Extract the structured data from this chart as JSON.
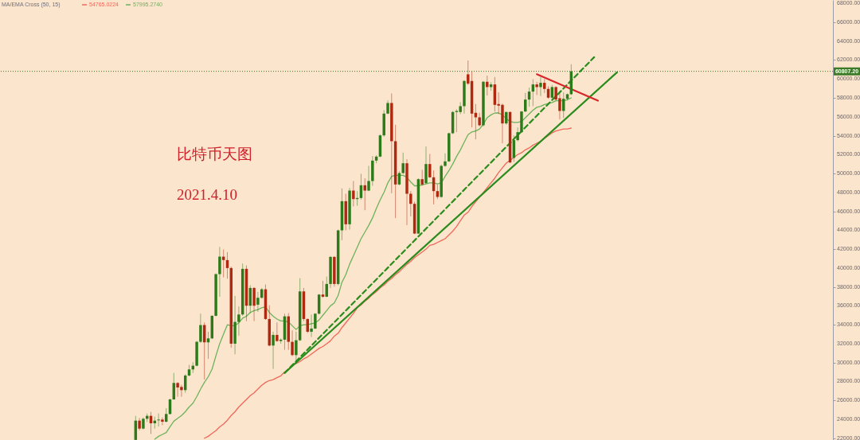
{
  "chart_data": {
    "type": "candlestick",
    "categories": [
      null,
      null,
      null,
      null,
      null,
      null,
      null,
      null,
      null,
      null,
      null,
      null,
      null,
      null,
      null,
      null,
      null,
      null,
      null,
      null,
      null,
      null,
      null,
      null,
      null,
      null,
      null,
      null,
      null,
      null,
      null,
      null,
      null,
      null,
      null,
      null,
      null,
      null,
      null,
      null,
      null,
      null,
      null,
      null,
      null,
      null,
      null,
      null,
      null,
      null,
      null,
      null,
      null,
      null,
      null,
      null,
      null,
      null,
      null,
      null,
      null,
      null,
      null,
      null,
      null,
      null,
      null,
      null,
      null,
      null,
      null,
      null,
      null,
      null,
      null,
      null,
      null,
      null,
      null,
      null,
      null,
      null,
      null,
      null,
      null,
      null,
      null,
      null,
      null,
      null,
      null,
      null,
      null,
      null,
      null,
      null,
      null,
      null,
      null,
      null,
      null,
      null,
      null,
      null,
      null,
      null,
      null,
      null,
      null,
      null,
      null,
      null,
      null,
      null,
      null,
      null,
      null,
      null,
      null,
      null,
      null,
      null,
      null,
      null,
      null,
      null,
      null,
      null,
      null,
      null,
      null,
      null,
      null,
      null,
      null,
      null,
      null,
      null,
      null,
      null,
      null,
      null,
      null,
      null,
      null,
      null,
      null,
      null,
      null,
      null,
      null,
      null,
      null,
      null,
      null,
      null,
      null,
      null,
      null,
      null,
      null,
      null,
      null,
      null,
      null,
      null,
      null,
      null,
      null,
      null,
      null,
      null,
      null,
      null,
      null,
      null,
      null,
      null,
      null,
      null,
      null,
      null,
      null,
      null,
      null,
      null,
      null,
      null,
      null,
      null,
      null,
      null,
      null,
      null,
      null,
      null,
      null,
      null,
      null,
      null,
      null,
      null,
      null,
      null,
      null,
      null,
      null,
      null,
      null,
      null,
      null,
      null,
      null,
      null,
      null,
      null,
      null,
      null
    ],
    "ohlc": [
      null,
      null,
      null,
      null,
      null,
      null,
      null,
      null,
      null,
      null,
      null,
      null,
      null,
      null,
      null,
      null,
      null,
      null,
      null,
      null,
      null,
      null,
      null,
      null,
      null,
      null,
      null,
      null,
      null,
      null,
      null,
      null,
      null,
      null,
      null,
      [
        21820,
        24364,
        21820,
        23858
      ],
      [
        23858,
        24139,
        22819,
        23016
      ],
      [
        23016,
        24195,
        22932,
        24055
      ],
      [
        24055,
        24616,
        23718,
        24364
      ],
      [
        24364,
        24785,
        22454,
        23577
      ],
      [
        23577,
        24279,
        23016,
        23858
      ],
      [
        23887,
        24616,
        23240,
        23970
      ],
      [
        23970,
        24195,
        23381,
        23746
      ],
      [
        23746,
        25177,
        23662,
        24560
      ],
      [
        24560,
        26188,
        24504,
        26104
      ],
      [
        26104,
        28911,
        26076,
        27844
      ],
      [
        27844,
        27928,
        26384,
        27367
      ],
      [
        27423,
        27647,
        26384,
        27086
      ],
      [
        27086,
        28770,
        26805,
        28630
      ],
      [
        28630,
        29753,
        28546,
        29276
      ],
      [
        29276,
        30033,
        28911,
        29668
      ],
      [
        29668,
        32279,
        29612,
        32195
      ],
      [
        32195,
        35170,
        32082,
        33963
      ],
      [
        33963,
        34244,
        28209,
        32139
      ],
      [
        32139,
        33262,
        30398,
        32560
      ],
      [
        32560,
        35002,
        32476,
        34946
      ],
      [
        34946,
        39437,
        34890,
        39353
      ],
      [
        39353,
        42244,
        36967,
        41205
      ],
      [
        41205,
        41963,
        39016,
        40840
      ],
      [
        40840,
        41682,
        38876,
        39998
      ],
      [
        39998,
        40139,
        31577,
        31998
      ],
      [
        31998,
        37051,
        30876,
        34300
      ],
      [
        34300,
        35928,
        32841,
        35086
      ],
      [
        35086,
        40475,
        34946,
        39914
      ],
      [
        39914,
        40278,
        34384,
        36012
      ],
      [
        36012,
        38173,
        35226,
        37892
      ],
      [
        37892,
        37977,
        34384,
        36012
      ],
      [
        36124,
        37471,
        35366,
        36854
      ],
      [
        36854,
        37892,
        36770,
        37752
      ],
      [
        37752,
        38257,
        34524,
        34608
      ],
      [
        34608,
        36068,
        31717,
        31801
      ],
      [
        31801,
        33261,
        29331,
        32924
      ],
      [
        32924,
        34243,
        32194,
        32278
      ],
      [
        32278,
        32559,
        31997,
        32419
      ],
      [
        32419,
        35170,
        31352,
        34889
      ],
      [
        34889,
        35226,
        31352,
        32194
      ],
      [
        32194,
        33401,
        30679,
        30791
      ],
      [
        30791,
        33261,
        29892,
        32363
      ],
      [
        32363,
        38931,
        32278,
        37527
      ],
      [
        37527,
        37892,
        34384,
        34608
      ],
      [
        34608,
        34664,
        33121,
        33261
      ],
      [
        33261,
        35085,
        32699,
        33598
      ],
      [
        33598,
        35226,
        33542,
        35170
      ],
      [
        35170,
        37247,
        35085,
        37191
      ],
      [
        37191,
        38650,
        36854,
        36966
      ],
      [
        36966,
        39099,
        36910,
        38313
      ],
      [
        38313,
        41261,
        37892,
        41177
      ],
      [
        41177,
        41261,
        38033,
        38313
      ],
      [
        38313,
        44068,
        38173,
        43984
      ],
      [
        43984,
        48419,
        42945,
        47071
      ],
      [
        47071,
        47857,
        43984,
        44629
      ],
      [
        44629,
        48475,
        44068,
        48194
      ],
      [
        48194,
        49203,
        46508,
        47294
      ],
      [
        47294,
        48136,
        46592,
        47406
      ],
      [
        47406,
        49961,
        47238,
        48754
      ],
      [
        48754,
        49484,
        46115,
        48192
      ],
      [
        48192,
        50803,
        48136,
        49203
      ],
      [
        49203,
        51841,
        48698,
        51364
      ],
      [
        51364,
        51926,
        51083,
        51785
      ],
      [
        51785,
        54143,
        51729,
        54031
      ],
      [
        54031,
        56698,
        53891,
        56333
      ],
      [
        56333,
        57736,
        56277,
        57455
      ],
      [
        57455,
        58466,
        47912,
        53413
      ],
      [
        53413,
        55154,
        45274,
        48838
      ],
      [
        48838,
        50241,
        48754,
        50045
      ],
      [
        50045,
        52207,
        49961,
        51083
      ],
      [
        51083,
        51505,
        44543,
        47856
      ],
      [
        47856,
        48136,
        45469,
        46789
      ],
      [
        46789,
        47013,
        43589,
        43645
      ],
      [
        43645,
        49484,
        43589,
        49400
      ],
      [
        49400,
        50382,
        48698,
        48838
      ],
      [
        48979,
        52852,
        48922,
        50999
      ],
      [
        50999,
        52066,
        49540,
        49596
      ],
      [
        49596,
        50326,
        46733,
        48136
      ],
      [
        48136,
        48838,
        47294,
        47519
      ],
      [
        47519,
        50943,
        47435,
        50803
      ],
      [
        50803,
        52122,
        50719,
        51280
      ],
      [
        51280,
        54312,
        51224,
        54256
      ],
      [
        54256,
        56613,
        54171,
        56501
      ],
      [
        56501,
        56782,
        54368,
        56613
      ],
      [
        56501,
        57540,
        56277,
        57119
      ],
      [
        57119,
        59870,
        56333,
        59785
      ],
      [
        60487,
        61946,
        59364,
        59505
      ],
      [
        59785,
        60824,
        54873,
        56333
      ],
      [
        56417,
        57343,
        53610,
        55940
      ],
      [
        55940,
        56417,
        54985,
        55098
      ],
      [
        55098,
        59785,
        54985,
        59701
      ],
      [
        59701,
        60346,
        58242,
        59140
      ],
      [
        59140,
        59645,
        58747,
        59420
      ],
      [
        59420,
        60206,
        56557,
        57259
      ],
      [
        57343,
        58578,
        56277,
        57175
      ],
      [
        57259,
        57399,
        53189,
        55294
      ],
      [
        55294,
        56557,
        55154,
        56501
      ],
      [
        56501,
        56557,
        51083,
        51168
      ],
      [
        51645,
        54031,
        51224,
        53526
      ],
      [
        53526,
        54873,
        53413,
        54368
      ],
      [
        54368,
        56613,
        54312,
        56557
      ],
      [
        56557,
        58522,
        56501,
        57820
      ],
      [
        57820,
        59084,
        57062,
        58662
      ],
      [
        58662,
        59982,
        57119,
        59420
      ],
      [
        59420,
        59701,
        58298,
        59140
      ],
      [
        59140,
        60206,
        58186,
        59589
      ],
      [
        59589,
        59982,
        58522,
        58943
      ],
      [
        58943,
        59224,
        57905,
        58017
      ],
      [
        58017,
        59364,
        57905,
        59140
      ],
      [
        59140,
        59224,
        57736,
        57820
      ],
      [
        57961,
        58466,
        55715,
        56613
      ],
      [
        56613,
        58578,
        55855,
        57905
      ],
      [
        57905,
        58466,
        57736,
        58382
      ],
      [
        58382,
        61554,
        58298,
        60807.2
      ],
      null,
      null,
      null,
      null,
      null,
      null,
      null,
      null,
      null,
      null,
      null,
      null,
      null,
      null,
      null,
      null,
      null,
      null,
      null,
      null,
      null,
      null,
      null,
      null,
      null,
      null,
      null,
      null,
      null,
      null,
      null,
      null,
      null,
      null,
      null,
      null,
      null,
      null,
      null,
      null,
      null,
      null,
      null,
      null,
      null,
      null,
      null,
      null,
      null,
      null,
      null,
      null,
      null,
      null,
      null,
      null,
      null,
      null,
      null,
      null,
      null,
      null,
      null,
      null,
      null,
      null,
      null,
      null
    ],
    "colors": [
      null,
      null,
      null,
      null,
      null,
      null,
      null,
      null,
      null,
      null,
      null,
      null,
      null,
      null,
      null,
      null,
      null,
      null,
      null,
      null,
      null,
      null,
      null,
      null,
      null,
      null,
      null,
      null,
      null,
      null,
      null,
      null,
      null,
      null,
      null,
      "#2c7a19",
      "#b0280f",
      "#2c7a19",
      "#2c7a19",
      "#b0280f",
      "#2c7a19",
      "#2c7a19",
      "#b0280f",
      "#2c7a19",
      "#2c7a19",
      "#2c7a19",
      "#b0280f",
      "#b0280f",
      "#2c7a19",
      "#2c7a19",
      "#2c7a19",
      "#2c7a19",
      "#2c7a19",
      "#b0280f",
      "#2c7a19",
      "#2c7a19",
      "#2c7a19",
      "#2c7a19",
      "#b0280f",
      "#b0280f",
      "#b0280f",
      "#2c7a19",
      "#2c7a19",
      "#2c7a19",
      "#b0280f",
      "#2c7a19",
      "#b0280f",
      "#2c7a19",
      "#2c7a19",
      "#b0280f",
      "#b0280f",
      "#2c7a19",
      "#b0280f",
      "#2c7a19",
      "#2c7a19",
      "#b0280f",
      "#b0280f",
      "#2c7a19",
      "#2c7a19",
      "#b0280f",
      "#b0280f",
      "#2c7a19",
      "#2c7a19",
      "#2c7a19",
      "#b0280f",
      "#2c7a19",
      "#2c7a19",
      "#b0280f",
      "#2c7a19",
      "#2c7a19",
      "#b0280f",
      "#2c7a19",
      "#b0280f",
      "#2c7a19",
      "#2c7a19",
      "#b0280f",
      "#2c7a19",
      "#2c7a19",
      "#2c7a19",
      "#2c7a19",
      "#2c7a19",
      "#2c7a19",
      "#b0280f",
      "#b0280f",
      "#2c7a19",
      "#2c7a19",
      "#b0280f",
      "#b0280f",
      "#b0280f",
      "#2c7a19",
      "#b0280f",
      "#2c7a19",
      "#b0280f",
      "#b0280f",
      "#b0280f",
      "#2c7a19",
      "#2c7a19",
      "#2c7a19",
      "#2c7a19",
      "#2c7a19",
      "#2c7a19",
      "#2c7a19",
      "#b0280f",
      "#b0280f",
      "#b0280f",
      "#b0280f",
      "#2c7a19",
      "#b0280f",
      "#2c7a19",
      "#b0280f",
      "#b0280f",
      "#b0280f",
      "#2c7a19",
      "#b0280f",
      "#2c7a19",
      "#2c7a19",
      "#2c7a19",
      "#2c7a19",
      "#2c7a19",
      "#2c7a19",
      "#b0280f",
      "#2c7a19",
      "#b0280f",
      "#b0280f",
      "#2c7a19",
      "#b0280f",
      "#b0280f",
      "#2c7a19",
      "#2c7a19",
      "#2c7a19",
      null,
      null,
      null,
      null,
      null,
      null,
      null,
      null,
      null,
      null,
      null,
      null,
      null,
      null,
      null,
      null,
      null,
      null,
      null,
      null,
      null,
      null,
      null,
      null,
      null,
      null,
      null,
      null,
      null,
      null,
      null,
      null,
      null,
      null,
      null,
      null,
      null,
      null,
      null,
      null,
      null,
      null,
      null,
      null,
      null,
      null,
      null,
      null,
      null,
      null,
      null,
      null,
      null,
      null,
      null,
      null,
      null,
      null,
      null,
      null,
      null,
      null,
      null,
      null,
      null,
      null,
      null,
      null
    ],
    "series": [
      {
        "type": "line",
        "name": "54765.0224",
        "color": "#f0685a",
        "values": [
          null,
          null,
          null,
          null,
          null,
          null,
          null,
          null,
          null,
          null,
          null,
          null,
          null,
          null,
          null,
          null,
          null,
          null,
          null,
          null,
          null,
          null,
          null,
          null,
          null,
          null,
          null,
          null,
          null,
          null,
          null,
          null,
          null,
          null,
          null,
          null,
          null,
          null,
          null,
          null,
          null,
          null,
          null,
          null,
          null,
          null,
          null,
          null,
          null,
          null,
          null,
          null,
          null,
          22000,
          22200,
          22500,
          22800,
          23200,
          23500,
          23900,
          24400,
          24800,
          25300,
          25700,
          26100,
          26500,
          26800,
          27200,
          27600,
          27900,
          28100,
          28200,
          28400,
          28600,
          29000,
          29300,
          29700,
          29900,
          30100,
          30400,
          30600,
          30900,
          31200,
          31500,
          31700,
          32000,
          32300,
          32800,
          33100,
          33700,
          34200,
          34700,
          35200,
          35800,
          36100,
          36500,
          36800,
          37200,
          37500,
          37900,
          38200,
          38600,
          38900,
          39300,
          39600,
          40000,
          40400,
          40700,
          41100,
          41400,
          41700,
          42000,
          42400,
          42500,
          42700,
          42900,
          43100,
          43500,
          43900,
          44400,
          45000,
          45600,
          45900,
          46500,
          47000,
          47500,
          48000,
          48500,
          49000,
          49500,
          50100,
          50600,
          51100,
          51400,
          51700,
          52000,
          52200,
          52500,
          52700,
          53000,
          53200,
          53400,
          53700,
          54000,
          54300,
          54500,
          54600,
          54700,
          54700,
          54800,
          null,
          null,
          null,
          null,
          null,
          null,
          null,
          null,
          null,
          null,
          null,
          null,
          null,
          null,
          null,
          null,
          null,
          null,
          null,
          null,
          null,
          null,
          null,
          null,
          null,
          null,
          null,
          null,
          null,
          null,
          null,
          null,
          null,
          null,
          null,
          null,
          null,
          null,
          null,
          null,
          null,
          null,
          null,
          null,
          null,
          null,
          null,
          null,
          null,
          null,
          null,
          null,
          null,
          null,
          null,
          null,
          null,
          null,
          null,
          null,
          null,
          null,
          null,
          null,
          null,
          null,
          null,
          null
        ]
      },
      {
        "type": "line",
        "name": "57995.2740",
        "color": "#6cb35a",
        "values": [
          null,
          null,
          null,
          null,
          null,
          null,
          null,
          null,
          null,
          null,
          null,
          null,
          null,
          null,
          null,
          null,
          null,
          null,
          null,
          null,
          null,
          null,
          null,
          null,
          null,
          null,
          null,
          null,
          null,
          null,
          null,
          null,
          null,
          null,
          null,
          null,
          null,
          null,
          null,
          null,
          21900,
          22200,
          22400,
          22600,
          23200,
          23800,
          24100,
          24400,
          24800,
          25300,
          25700,
          26400,
          27200,
          27900,
          28500,
          29300,
          30700,
          32000,
          33000,
          34000,
          33900,
          33900,
          34200,
          34700,
          34900,
          35300,
          35500,
          35600,
          35800,
          35900,
          35300,
          34900,
          34600,
          34400,
          34400,
          34300,
          33900,
          33500,
          33900,
          34000,
          34000,
          34100,
          34200,
          34500,
          35000,
          35500,
          36000,
          36300,
          37100,
          38500,
          39300,
          40400,
          41300,
          42200,
          43100,
          43800,
          44500,
          45300,
          46300,
          47200,
          48000,
          49000,
          49700,
          49800,
          49800,
          49800,
          49600,
          49100,
          48700,
          48700,
          48800,
          48900,
          49000,
          49000,
          48900,
          49000,
          49700,
          50300,
          51000,
          51800,
          52500,
          53300,
          54100,
          54400,
          54500,
          54700,
          55200,
          55900,
          56200,
          56400,
          56400,
          56200,
          55800,
          55500,
          55400,
          55400,
          55500,
          55900,
          56300,
          56700,
          57000,
          57100,
          57300,
          57400,
          57500,
          57700,
          57700,
          57700,
          57800,
          58000,
          null,
          null,
          null,
          null,
          null,
          null,
          null,
          null,
          null,
          null,
          null,
          null,
          null,
          null,
          null,
          null,
          null,
          null,
          null,
          null,
          null,
          null,
          null,
          null,
          null,
          null,
          null,
          null,
          null,
          null,
          null,
          null,
          null,
          null,
          null,
          null,
          null,
          null,
          null,
          null,
          null,
          null,
          null,
          null,
          null,
          null,
          null,
          null,
          null,
          null,
          null,
          null,
          null,
          null,
          null,
          null,
          null,
          null,
          null,
          null,
          null,
          null,
          null,
          null,
          null,
          null,
          null,
          null
        ]
      },
      {
        "type": "line",
        "color": "#2a8c1c",
        "line_style": "dashed",
        "values": [
          null,
          null,
          null,
          null,
          null,
          null,
          null,
          null,
          null,
          null,
          null,
          null,
          null,
          null,
          null,
          null,
          null,
          null,
          null,
          null,
          null,
          null,
          null,
          null,
          null,
          null,
          null,
          null,
          null,
          null,
          null,
          null,
          null,
          null,
          null,
          null,
          null,
          null,
          null,
          null,
          null,
          null,
          null,
          null,
          null,
          null,
          null,
          null,
          null,
          null,
          null,
          null,
          null,
          null,
          null,
          null,
          null,
          null,
          null,
          null,
          null,
          null,
          null,
          null,
          null,
          null,
          null,
          null,
          null,
          null,
          null,
          null,
          null,
          null,
          28900,
          null,
          null,
          null,
          null,
          null,
          null,
          null,
          null,
          null,
          null,
          null,
          null,
          null,
          null,
          null,
          null,
          null,
          null,
          null,
          null,
          null,
          null,
          null,
          null,
          null,
          null,
          null,
          null,
          null,
          null,
          null,
          null,
          null,
          null,
          null,
          null,
          null,
          null,
          null,
          null,
          null,
          null,
          null,
          null,
          null,
          null,
          null,
          null,
          null,
          null,
          null,
          null,
          null,
          null,
          null,
          null,
          null,
          null,
          null,
          null,
          null,
          null,
          null,
          null,
          null,
          null,
          null,
          null,
          null,
          null,
          null,
          null,
          null,
          null,
          null,
          null,
          null,
          null,
          null,
          null,
          62300,
          null,
          null,
          null,
          null,
          null,
          null,
          null,
          null,
          null,
          null,
          null,
          null,
          null,
          null,
          null,
          null,
          null,
          null,
          null,
          null,
          null,
          null,
          null,
          null,
          null,
          null,
          null,
          null,
          null,
          null,
          null,
          null,
          null,
          null,
          null,
          null,
          null,
          null,
          null,
          null,
          null,
          null,
          null,
          null,
          null,
          null,
          null,
          null,
          null,
          null,
          null,
          null,
          null,
          null,
          null,
          null,
          null,
          null,
          null,
          null,
          null,
          null
        ]
      },
      {
        "type": "line",
        "color": "#2a8c1c",
        "values": [
          null,
          null,
          null,
          null,
          null,
          null,
          null,
          null,
          null,
          null,
          null,
          null,
          null,
          null,
          null,
          null,
          null,
          null,
          null,
          null,
          null,
          null,
          null,
          null,
          null,
          null,
          null,
          null,
          null,
          null,
          null,
          null,
          null,
          null,
          null,
          null,
          null,
          null,
          null,
          null,
          null,
          null,
          null,
          null,
          null,
          null,
          null,
          null,
          null,
          null,
          null,
          null,
          null,
          null,
          null,
          null,
          null,
          null,
          null,
          null,
          null,
          null,
          null,
          null,
          null,
          null,
          null,
          null,
          null,
          null,
          null,
          null,
          null,
          null,
          28900,
          null,
          null,
          null,
          null,
          null,
          null,
          null,
          null,
          null,
          null,
          null,
          null,
          null,
          null,
          null,
          null,
          null,
          null,
          null,
          null,
          null,
          null,
          null,
          null,
          null,
          null,
          null,
          null,
          null,
          null,
          null,
          null,
          null,
          null,
          null,
          null,
          null,
          null,
          null,
          null,
          null,
          null,
          null,
          null,
          null,
          null,
          null,
          null,
          null,
          null,
          null,
          null,
          null,
          null,
          null,
          null,
          null,
          null,
          null,
          null,
          null,
          null,
          null,
          null,
          null,
          null,
          null,
          null,
          null,
          null,
          null,
          null,
          null,
          null,
          null,
          null,
          null,
          null,
          null,
          null,
          null,
          null,
          null,
          null,
          null,
          null,
          60700,
          null,
          null,
          null,
          null,
          null,
          null,
          null,
          null,
          null,
          null,
          null,
          null,
          null,
          null,
          null,
          null,
          null,
          null,
          null,
          null,
          null,
          null,
          null,
          null,
          null,
          null,
          null,
          null,
          null,
          null,
          null,
          null,
          null,
          null,
          null,
          null,
          null,
          null,
          null,
          null,
          null,
          null,
          null,
          null,
          null,
          null,
          null,
          null,
          null,
          null,
          null,
          null,
          null,
          null,
          null,
          null
        ]
      },
      {
        "type": "line",
        "color": "#d9262a",
        "values": [
          null,
          null,
          null,
          null,
          null,
          null,
          null,
          null,
          null,
          null,
          null,
          null,
          null,
          null,
          null,
          null,
          null,
          null,
          null,
          null,
          null,
          null,
          null,
          null,
          null,
          null,
          null,
          null,
          null,
          null,
          null,
          null,
          null,
          null,
          null,
          null,
          null,
          null,
          null,
          null,
          null,
          null,
          null,
          null,
          null,
          null,
          null,
          null,
          null,
          null,
          null,
          null,
          null,
          null,
          null,
          null,
          null,
          null,
          null,
          null,
          null,
          null,
          null,
          null,
          null,
          null,
          null,
          null,
          null,
          null,
          null,
          null,
          null,
          null,
          null,
          null,
          null,
          null,
          null,
          null,
          null,
          null,
          null,
          null,
          null,
          null,
          null,
          null,
          null,
          null,
          null,
          null,
          null,
          null,
          null,
          null,
          null,
          null,
          null,
          null,
          null,
          null,
          null,
          null,
          null,
          null,
          null,
          null,
          null,
          null,
          null,
          null,
          null,
          null,
          null,
          null,
          null,
          null,
          null,
          null,
          null,
          null,
          null,
          null,
          null,
          null,
          null,
          null,
          null,
          null,
          null,
          null,
          null,
          null,
          null,
          null,
          null,
          null,
          null,
          null,
          60500,
          null,
          null,
          null,
          null,
          null,
          null,
          null,
          null,
          null,
          null,
          null,
          null,
          null,
          null,
          null,
          57700,
          null,
          null,
          null,
          null,
          null,
          null,
          null,
          null,
          null,
          null,
          null,
          null,
          null,
          null,
          null,
          null,
          null,
          null,
          null,
          null,
          null,
          null,
          null,
          null,
          null,
          null,
          null,
          null,
          null,
          null,
          null,
          null,
          null,
          null,
          null,
          null,
          null,
          null,
          null,
          null,
          null,
          null,
          null,
          null,
          null,
          null,
          null,
          null,
          null,
          null,
          null,
          null,
          null,
          null,
          null,
          null,
          null,
          null,
          null,
          null,
          null
        ]
      }
    ],
    "ylim": [
      21810,
      68350
    ],
    "yticks": [
      {
        "value": 22000,
        "label": "22000.00"
      },
      {
        "value": 24000,
        "label": "24000.00"
      },
      {
        "value": 26000,
        "label": "26000.00"
      },
      {
        "value": 28000,
        "label": "28000.00"
      },
      {
        "value": 30000,
        "label": "30000.00"
      },
      {
        "value": 32000,
        "label": "32000.00"
      },
      {
        "value": 34000,
        "label": "34000.00"
      },
      {
        "value": 36000,
        "label": "36000.00"
      },
      {
        "value": 38000,
        "label": "38000.00"
      },
      {
        "value": 40000,
        "label": "40000.00"
      },
      {
        "value": 42000,
        "label": "42000.00"
      },
      {
        "value": 44000,
        "label": "44000.00"
      },
      {
        "value": 46000,
        "label": "46000.00"
      },
      {
        "value": 48000,
        "label": "48000.00"
      },
      {
        "value": 50000,
        "label": "50000.00"
      },
      {
        "value": 52000,
        "label": "52000.00"
      },
      {
        "value": 54000,
        "label": "54000.00"
      },
      {
        "value": 56000,
        "label": "56000.00"
      },
      {
        "value": 58000,
        "label": "58000.00"
      },
      {
        "value": 60000,
        "label": "60000.00"
      },
      {
        "value": 62000,
        "label": "62000.00"
      },
      {
        "value": 64000,
        "label": "64000.00"
      },
      {
        "value": 66000,
        "label": "66000.00"
      },
      {
        "value": 68000,
        "label": "68000.00"
      }
    ],
    "ref_lines": [
      {
        "axis": "y",
        "value": 60807.2,
        "label": "60807.20",
        "color": "#3b7a26",
        "line_style": "dotted"
      }
    ],
    "annotations": [
      "比特币天图",
      "2021.4.10"
    ],
    "legend": "top left",
    "legend_title": "MA/EMA Cross (50, 15)",
    "tick_labels": "y"
  }
}
